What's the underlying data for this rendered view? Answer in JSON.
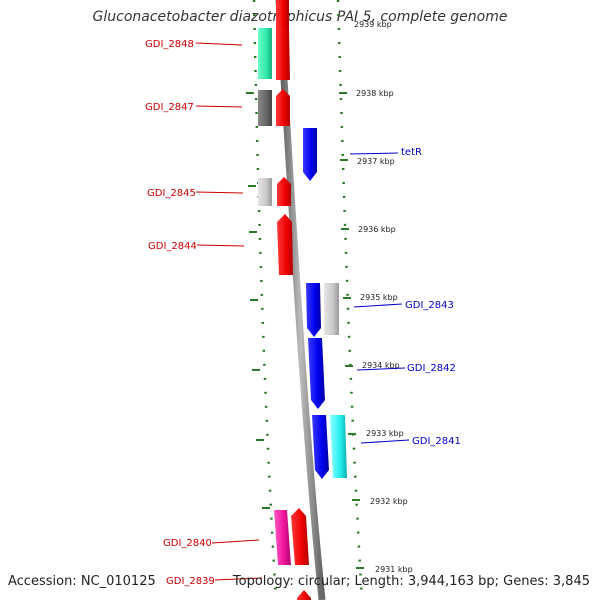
{
  "title": "Gluconacetobacter diazotrophicus PAI 5, complete genome",
  "footer": {
    "accession": "Accession: NC_010125",
    "topology": "Topology: circular; Length: 3,944,163 bp; Genes: 3,845"
  },
  "colors": {
    "forward_label": "#cc0000",
    "reverse_label": "#0000cc",
    "backbone": "#888888",
    "tick": "#2a7a2a"
  },
  "kbp_ticks": [
    "2939 kbp",
    "2938 kbp",
    "2937 kbp",
    "2936 kbp",
    "2935 kbp",
    "2934 kbp",
    "2933 kbp",
    "2932 kbp",
    "2931 kbp"
  ],
  "genes_left": [
    {
      "label": "GDI_2848",
      "color": "#cc0000"
    },
    {
      "label": "GDI_2847",
      "color": "#cc0000"
    },
    {
      "label": "GDI_2845",
      "color": "#cc0000"
    },
    {
      "label": "GDI_2844",
      "color": "#cc0000"
    },
    {
      "label": "GDI_2840",
      "color": "#cc0000"
    },
    {
      "label": "GDI_2839",
      "color": "#cc0000"
    }
  ],
  "genes_right": [
    {
      "label": "tetR",
      "color": "#0000cc"
    },
    {
      "label": "GDI_2843",
      "color": "#0000cc"
    },
    {
      "label": "GDI_2842",
      "color": "#0000cc"
    },
    {
      "label": "GDI_2841",
      "color": "#0000cc"
    }
  ]
}
